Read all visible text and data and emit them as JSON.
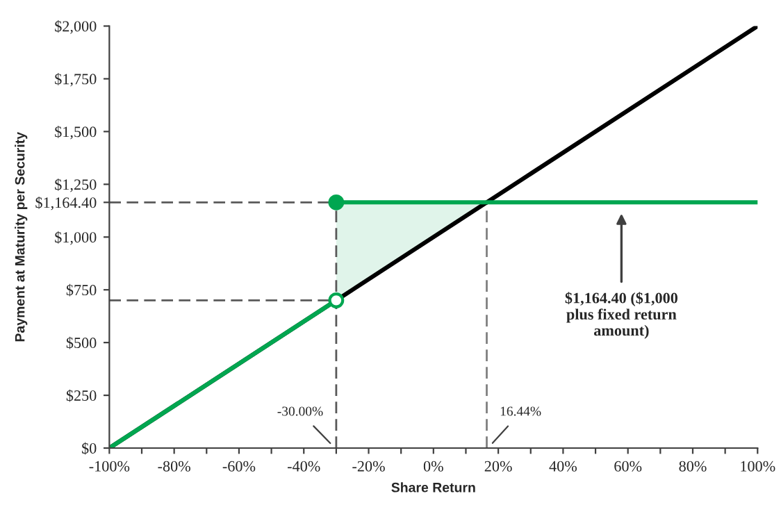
{
  "chart_data": {
    "type": "line",
    "xlabel": "Share Return",
    "ylabel": "Payment at Maturity per Security",
    "xlim": [
      -100,
      100
    ],
    "ylim": [
      0,
      2000
    ],
    "xticks": [
      {
        "value": -100,
        "label": "-100%"
      },
      {
        "value": -90,
        "label": null
      },
      {
        "value": -80,
        "label": "-80%"
      },
      {
        "value": -70,
        "label": null
      },
      {
        "value": -60,
        "label": "-60%"
      },
      {
        "value": -50,
        "label": null
      },
      {
        "value": -40,
        "label": "-40%"
      },
      {
        "value": -30,
        "label": null
      },
      {
        "value": -20,
        "label": "-20%"
      },
      {
        "value": -10,
        "label": null
      },
      {
        "value": 0,
        "label": "0%"
      },
      {
        "value": 10,
        "label": null
      },
      {
        "value": 20,
        "label": "20%"
      },
      {
        "value": 30,
        "label": null
      },
      {
        "value": 40,
        "label": "40%"
      },
      {
        "value": 50,
        "label": null
      },
      {
        "value": 60,
        "label": "60%"
      },
      {
        "value": 70,
        "label": null
      },
      {
        "value": 80,
        "label": "80%"
      },
      {
        "value": 90,
        "label": null
      },
      {
        "value": 100,
        "label": "100%"
      }
    ],
    "yticks": [
      {
        "value": 0,
        "label": "$0"
      },
      {
        "value": 250,
        "label": "$250"
      },
      {
        "value": 500,
        "label": "$500"
      },
      {
        "value": 750,
        "label": "$750"
      },
      {
        "value": 1000,
        "label": "$1,000"
      },
      {
        "value": 1164.4,
        "label": "$1,164.40"
      },
      {
        "value": 1250,
        "label": "$1,250"
      },
      {
        "value": 1500,
        "label": "$1,500"
      },
      {
        "value": 1750,
        "label": "$1,750"
      },
      {
        "value": 2000,
        "label": "$2,000"
      }
    ],
    "grid": false,
    "legend": false,
    "series": [
      {
        "type": "line",
        "color": "#595959",
        "line_style": "dashed",
        "x": [
          -100,
          -30
        ],
        "values": [
          1164.4,
          1164.4
        ]
      },
      {
        "type": "line",
        "color": "#595959",
        "line_style": "dashed",
        "x": [
          -100,
          -30
        ],
        "values": [
          700,
          700
        ]
      },
      {
        "type": "line",
        "color": "#595959",
        "line_style": "dashed",
        "x": [
          -30,
          -30
        ],
        "values": [
          0,
          1164.4
        ]
      },
      {
        "type": "line",
        "color": "#7f7f7f",
        "line_style": "dashed",
        "x": [
          16.44,
          16.44
        ],
        "values": [
          0,
          1164.4
        ]
      },
      {
        "color": "#000000",
        "line_style": "solid",
        "x": [
          -100,
          100
        ],
        "values": [
          0,
          2000
        ]
      },
      {
        "color": "#00a650",
        "line_style": "solid",
        "x": [
          -100,
          -30
        ],
        "values": [
          0,
          700
        ]
      },
      {
        "color": "#00a650",
        "line_style": "solid",
        "x": [
          -30,
          16.44,
          100
        ],
        "values": [
          1164.4,
          1164.4,
          1164.4
        ],
        "lower": [
          700,
          1164.4,
          1164.4
        ],
        "upper": [
          1164.4,
          1164.4,
          1164.4
        ]
      },
      {
        "type": "scatter",
        "color": "#00a650",
        "marker": "circle",
        "colors": [
          "#00a650",
          "#ffffff"
        ],
        "x": [
          -30,
          -30
        ],
        "values": [
          1164.4,
          700
        ]
      }
    ],
    "annotations": [
      {
        "text": "-30.00%",
        "x": -30,
        "y": 0
      },
      {
        "text": "16.44%",
        "x": 16.44,
        "y": 0
      },
      "$1,164.40 ($1,000\nplus fixed return\namount)"
    ]
  }
}
